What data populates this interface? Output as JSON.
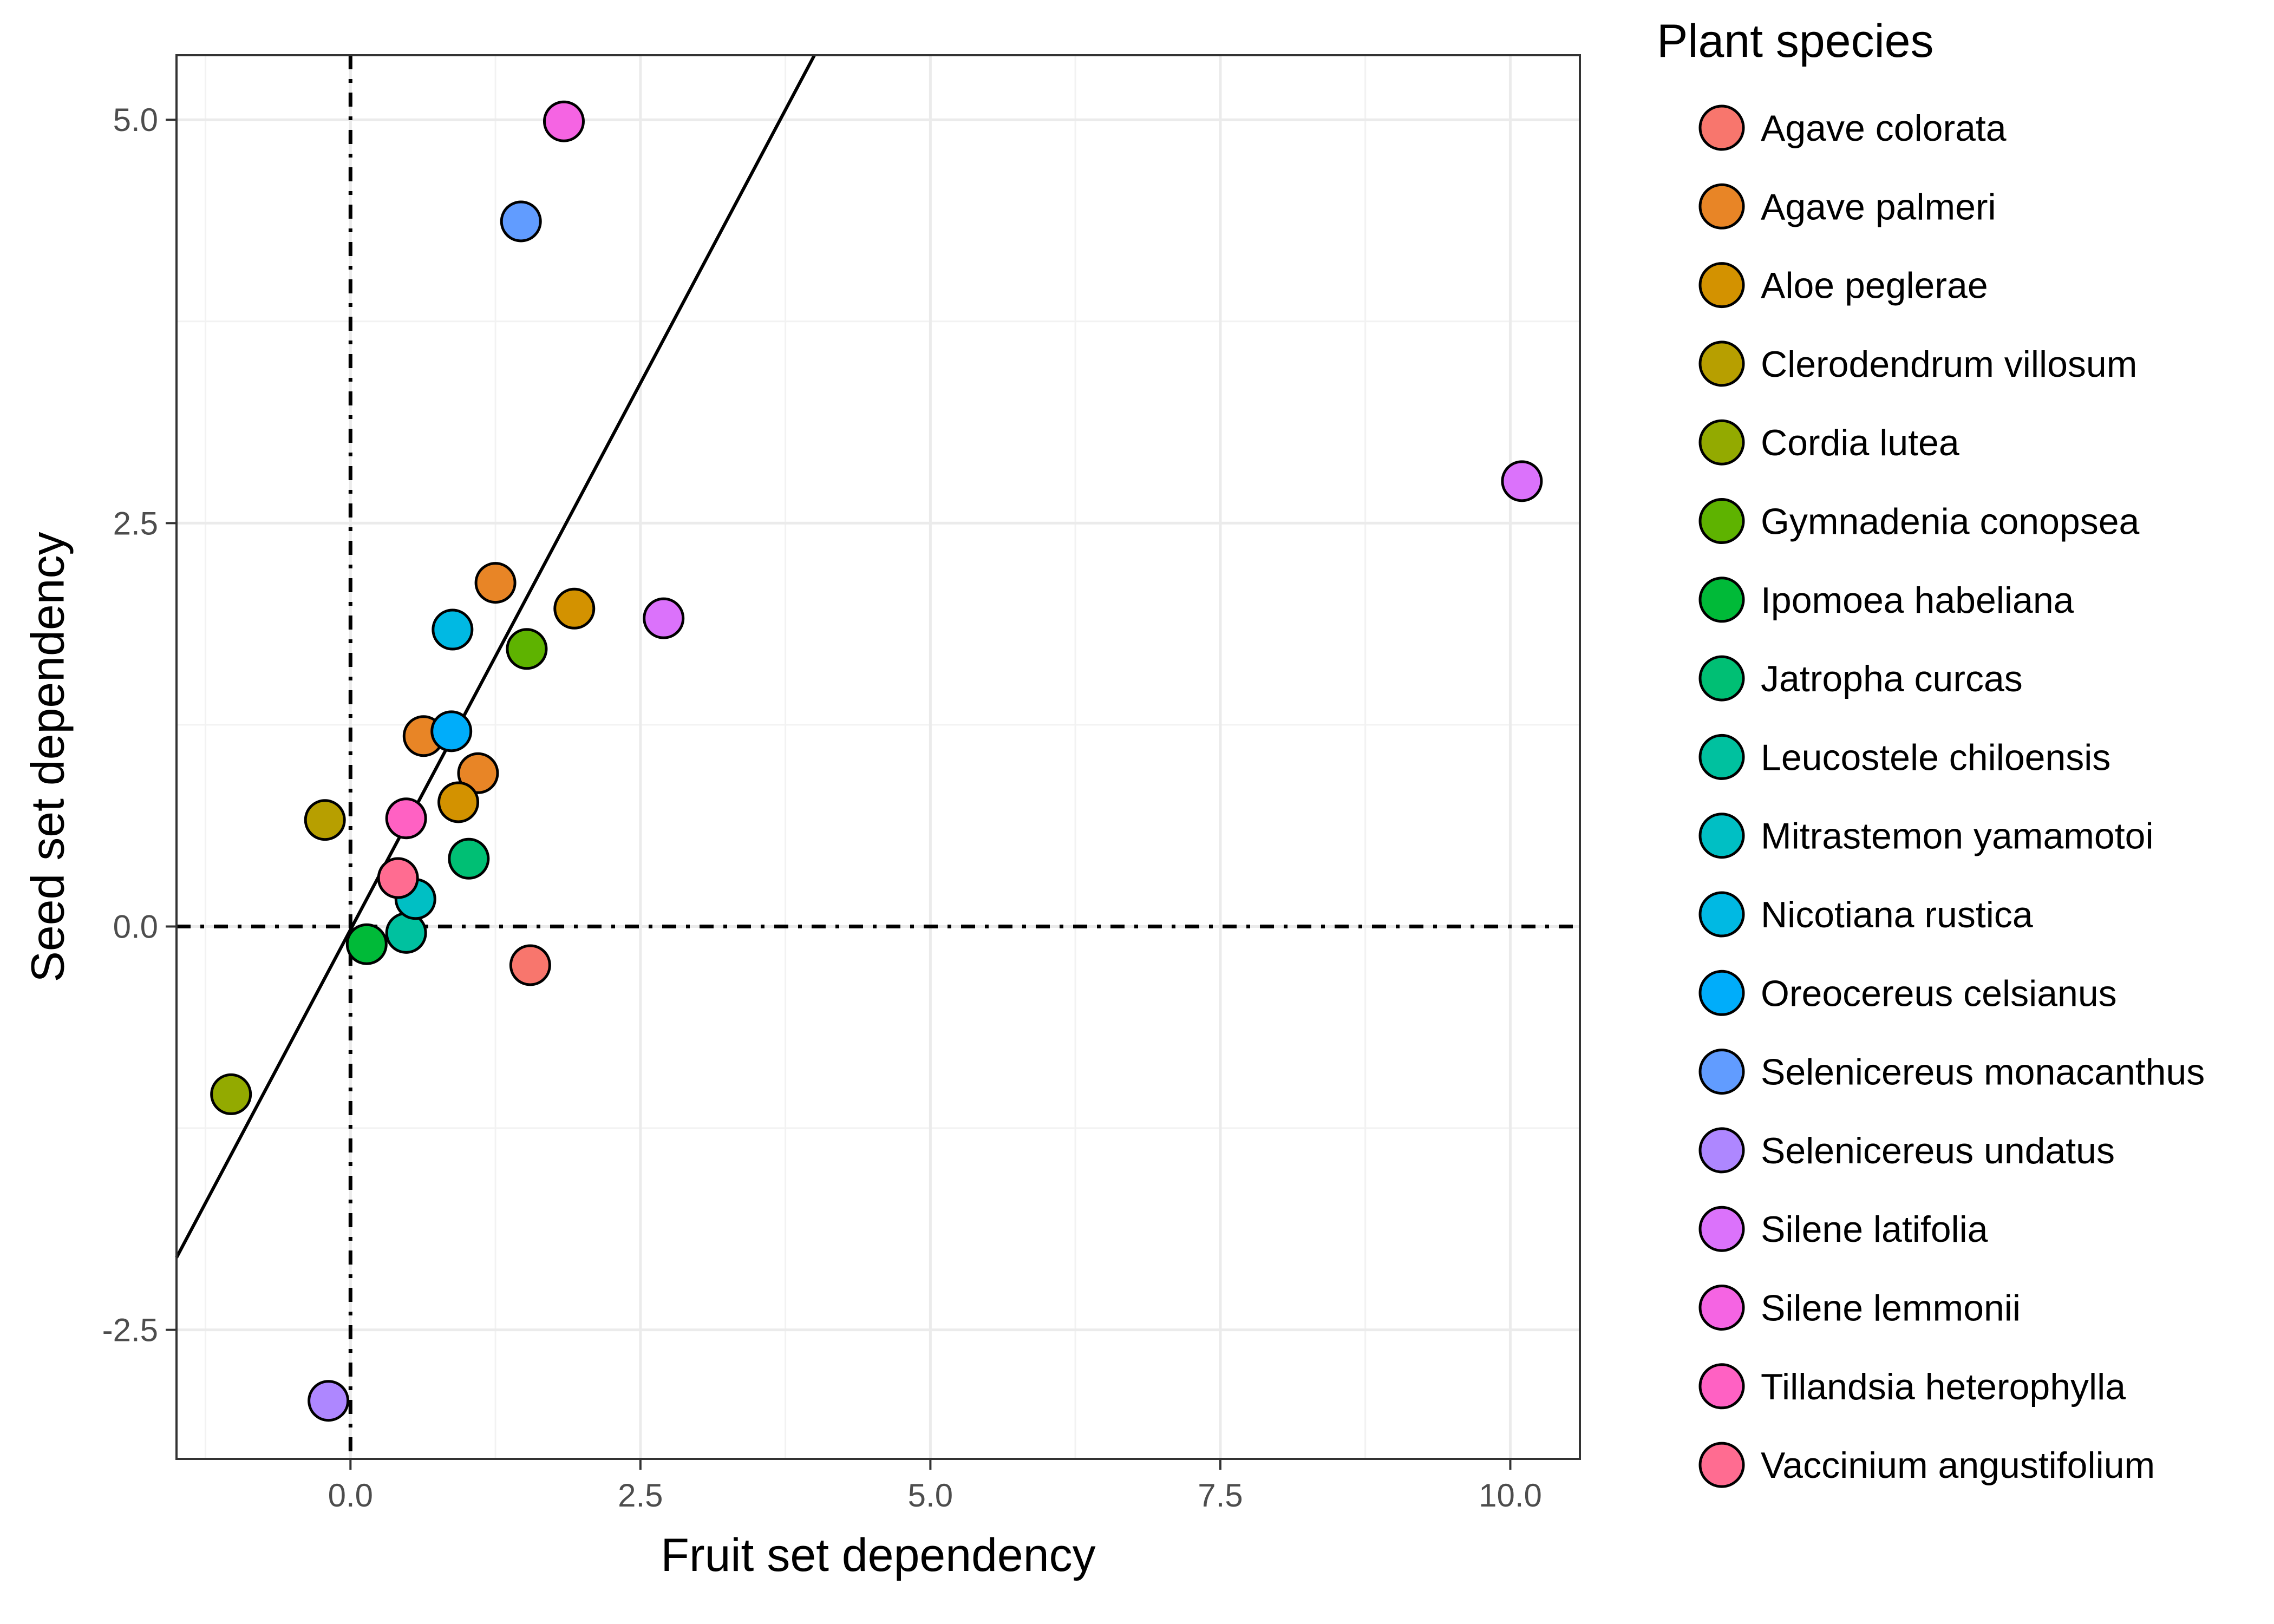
{
  "chart_data": {
    "type": "scatter",
    "xlabel": "Fruit set dependency",
    "ylabel": "Seed set dependency",
    "xlim": [
      -1.5,
      10.6
    ],
    "ylim": [
      -3.3,
      5.4
    ],
    "x_ticks": [
      0.0,
      2.5,
      5.0,
      7.5,
      10.0
    ],
    "x_tick_labels": [
      "0.0",
      "2.5",
      "5.0",
      "7.5",
      "10.0"
    ],
    "y_ticks": [
      -2.5,
      0.0,
      2.5,
      5.0
    ],
    "y_tick_labels": [
      "-2.5",
      "0.0",
      "2.5",
      "5.0"
    ],
    "grid": true,
    "reference_lines": {
      "x": 0,
      "y": 0,
      "style": "dot-dash"
    },
    "fit_line": {
      "slope": 1.355,
      "intercept": -0.02
    },
    "legend": {
      "title": "Plant species",
      "position": "right",
      "entries": [
        {
          "label": "Agave colorata",
          "color": "#F8766D"
        },
        {
          "label": "Agave palmeri",
          "color": "#E88526"
        },
        {
          "label": "Aloe peglerae",
          "color": "#D39200"
        },
        {
          "label": "Clerodendrum villosum",
          "color": "#B79F00"
        },
        {
          "label": "Cordia lutea",
          "color": "#93AA00"
        },
        {
          "label": "Gymnadenia conopsea",
          "color": "#5EB300"
        },
        {
          "label": "Ipomoea habeliana",
          "color": "#00BA38"
        },
        {
          "label": "Jatropha curcas",
          "color": "#00BF74"
        },
        {
          "label": "Leucostele chiloensis",
          "color": "#00C19F"
        },
        {
          "label": "Mitrastemon yamamotoi",
          "color": "#00BFC4"
        },
        {
          "label": "Nicotiana rustica",
          "color": "#00B9E3"
        },
        {
          "label": "Oreocereus celsianus",
          "color": "#00ADFA"
        },
        {
          "label": "Selenicereus monacanthus",
          "color": "#619CFF"
        },
        {
          "label": "Selenicereus undatus",
          "color": "#AE87FF"
        },
        {
          "label": "Silene latifolia",
          "color": "#DB72FB"
        },
        {
          "label": "Silene lemmonii",
          "color": "#F564E3"
        },
        {
          "label": "Tillandsia heterophylla",
          "color": "#FF61C3"
        },
        {
          "label": "Vaccinium angustifolium",
          "color": "#FF6C91"
        }
      ]
    },
    "points": [
      {
        "species": "Agave colorata",
        "x": 1.55,
        "y": -0.24
      },
      {
        "species": "Agave palmeri",
        "x": 1.25,
        "y": 2.13
      },
      {
        "species": "Agave palmeri",
        "x": 0.63,
        "y": 1.18
      },
      {
        "species": "Agave palmeri",
        "x": 1.1,
        "y": 0.95
      },
      {
        "species": "Aloe peglerae",
        "x": 1.93,
        "y": 1.97
      },
      {
        "species": "Aloe peglerae",
        "x": 0.93,
        "y": 0.77
      },
      {
        "species": "Clerodendrum villosum",
        "x": -0.22,
        "y": 0.66
      },
      {
        "species": "Cordia lutea",
        "x": -1.03,
        "y": -1.04
      },
      {
        "species": "Gymnadenia conopsea",
        "x": 1.52,
        "y": 1.72
      },
      {
        "species": "Ipomoea habeliana",
        "x": 0.14,
        "y": -0.11
      },
      {
        "species": "Jatropha curcas",
        "x": 1.02,
        "y": 0.42
      },
      {
        "species": "Leucostele chiloensis",
        "x": 0.48,
        "y": -0.04
      },
      {
        "species": "Mitrastemon yamamotoi",
        "x": 0.56,
        "y": 0.17
      },
      {
        "species": "Nicotiana rustica",
        "x": 0.88,
        "y": 1.84
      },
      {
        "species": "Oreocereus celsianus",
        "x": 0.87,
        "y": 1.21
      },
      {
        "species": "Selenicereus monacanthus",
        "x": 1.47,
        "y": 4.37
      },
      {
        "species": "Selenicereus undatus",
        "x": -0.19,
        "y": -2.94
      },
      {
        "species": "Silene latifolia",
        "x": 2.7,
        "y": 1.91
      },
      {
        "species": "Silene latifolia",
        "x": 10.1,
        "y": 2.76
      },
      {
        "species": "Silene lemmonii",
        "x": 1.84,
        "y": 4.99
      },
      {
        "species": "Tillandsia heterophylla",
        "x": 0.48,
        "y": 0.67
      },
      {
        "species": "Vaccinium angustifolium",
        "x": 0.41,
        "y": 0.3
      }
    ]
  }
}
